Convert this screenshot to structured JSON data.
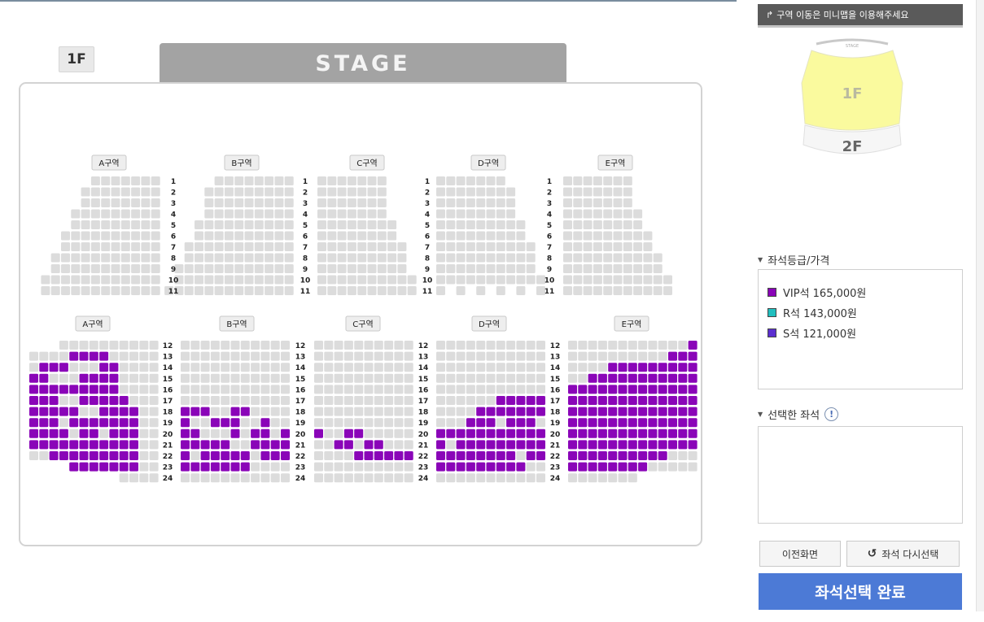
{
  "floor_badge": "1F",
  "stage_label": "STAGE",
  "zone_labels": [
    "A구역",
    "B구역",
    "C구역",
    "D구역",
    "E구역"
  ],
  "upper_rows": [
    "1",
    "2",
    "3",
    "4",
    "5",
    "6",
    "7",
    "8",
    "9",
    "10",
    "11"
  ],
  "lower_rows": [
    "12",
    "13",
    "14",
    "15",
    "16",
    "17",
    "18",
    "19",
    "20",
    "21",
    "22",
    "23",
    "24"
  ],
  "panel": {
    "hint_text": "구역 이동은 미니맵을 이용해주세요",
    "minimap": {
      "stage_text": "STAGE",
      "floor1": "1F",
      "floor2": "2F"
    },
    "grade_title": "좌석등급/가격",
    "grades": [
      {
        "label": "VIP석 165,000원",
        "color": "#8a05b8"
      },
      {
        "label": "R석 143,000원",
        "color": "#21bfbf"
      },
      {
        "label": "S석 121,000원",
        "color": "#5b2fd0"
      }
    ],
    "selected_title": "선택한 좌석",
    "info_icon": "!",
    "btn_prev": "이전화면",
    "btn_reset": "좌석 다시선택",
    "btn_complete": "좌석선택 완료"
  },
  "colors": {
    "seat_empty": "#dcdcdc",
    "seat_vip": "#8a05b8",
    "seat_r": "#21bfbf",
    "seat_s": "#5b2fd0",
    "minimap_1f": "#fafa9e",
    "complete_button": "#4c7ad6"
  },
  "icons": {
    "hint": "arrow-turn-icon",
    "section_bullet": "triangle-down-icon",
    "reset": "refresh-icon"
  }
}
